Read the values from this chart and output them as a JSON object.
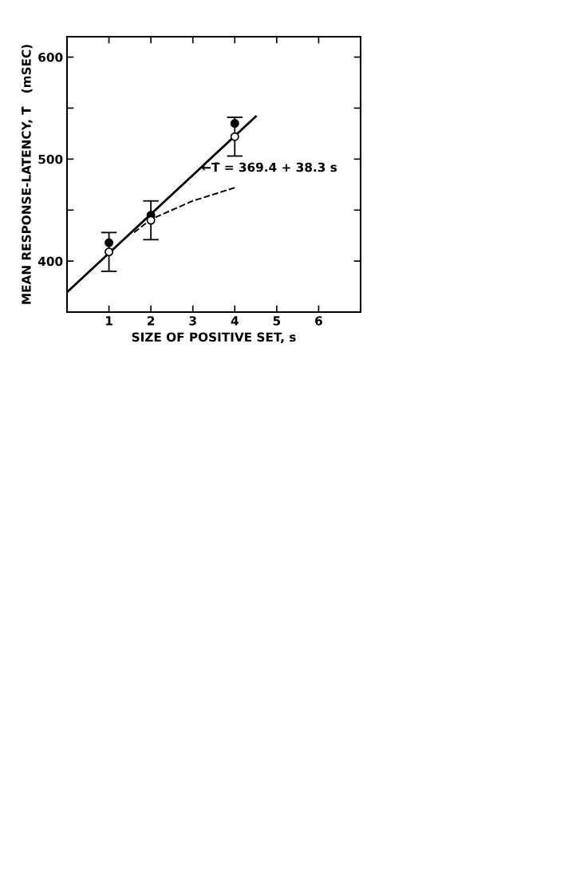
{
  "chart_data": {
    "type": "scatter",
    "xlabel": "SIZE OF POSITIVE SET, s",
    "ylabel": "MEAN RESPONSE-LATENCY, T̄   (mSEC)",
    "xlim": [
      0,
      7
    ],
    "xticks": [
      1,
      2,
      3,
      4,
      5,
      6
    ],
    "ylim": [
      350,
      620
    ],
    "yticks": [
      400,
      {
        "value": 450,
        "label": null
      },
      500,
      {
        "value": 550,
        "label": null
      },
      600
    ],
    "grid": false,
    "series": [
      {
        "marker": "circle",
        "color": "#000000",
        "x": [
          1,
          2,
          4
        ],
        "values": [
          418,
          445,
          535
        ]
      },
      {
        "marker": "circle",
        "color": "#ffffff",
        "x": [
          1,
          2,
          4
        ],
        "values": [
          409,
          440,
          522
        ],
        "errors": [
          19,
          19,
          19
        ]
      },
      {
        "type": "line",
        "line_style": "solid",
        "color": "#000000",
        "x": [
          0,
          4.5
        ],
        "values": [
          369.4,
          541.8
        ]
      },
      {
        "type": "line",
        "line_style": "dashed",
        "color": "#000000",
        "x": [
          1.6,
          2,
          3,
          4
        ],
        "values": [
          428,
          441,
          459,
          472
        ]
      }
    ],
    "annotations": [
      {
        "text": "←T̄ = 369.4 + 38.3 s",
        "x": 3.2,
        "y": 491
      }
    ]
  }
}
